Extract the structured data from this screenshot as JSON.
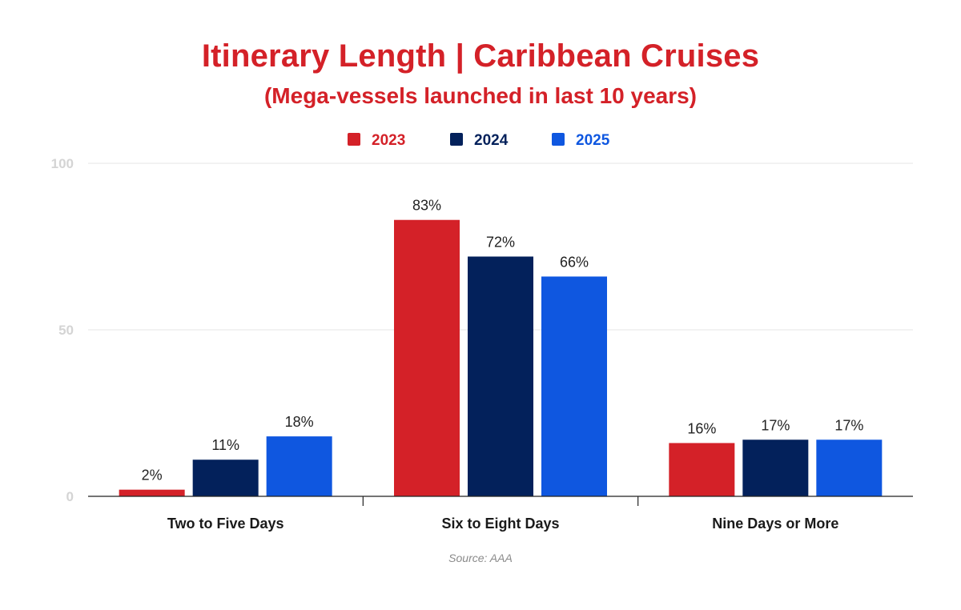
{
  "chart_data": {
    "type": "bar",
    "title": "Itinerary Length | Caribbean Cruises",
    "subtitle": "(Mega-vessels launched in last 10 years)",
    "categories": [
      "Two to Five Days",
      "Six to Eight Days",
      "Nine Days or More"
    ],
    "series": [
      {
        "name": "2023",
        "values": [
          2,
          83,
          16
        ],
        "labels": [
          "2%",
          "83%",
          "16%"
        ],
        "color": "#d42128"
      },
      {
        "name": "2024",
        "values": [
          11,
          72,
          17
        ],
        "labels": [
          "11%",
          "72%",
          "17%"
        ],
        "color": "#03215b"
      },
      {
        "name": "2025",
        "values": [
          18,
          66,
          17
        ],
        "labels": [
          "18%",
          "66%",
          "17%"
        ],
        "color": "#0f57e0"
      }
    ],
    "yticks": [
      "0",
      "50",
      "100"
    ],
    "ylim": [
      0,
      100
    ],
    "grid": true,
    "legend": "top-center",
    "source": "Source: AAA"
  }
}
